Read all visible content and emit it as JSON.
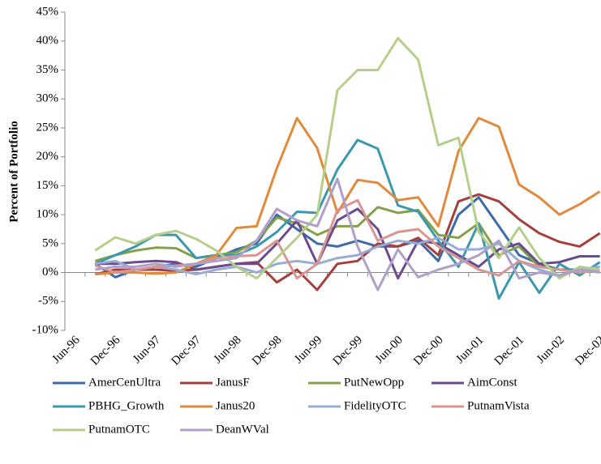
{
  "chart_data": {
    "type": "line",
    "y_label": "Percent of Portfolio",
    "categories": [
      "Jun-96",
      null,
      "Dec-96",
      null,
      "Jun-97",
      null,
      "Dec-97",
      null,
      "Jun-98",
      null,
      "Dec-98",
      null,
      "Jun-99",
      null,
      "Dec-99",
      null,
      "Jun-00",
      null,
      "Dec-00",
      null,
      "Jun-01",
      null,
      "Dec-01",
      null,
      "Jun-02",
      null,
      "Dec-02"
    ],
    "ylim": [
      -10,
      45
    ],
    "yticks": [
      {
        "value": -10,
        "label": "-10%"
      },
      {
        "value": -5,
        "label": "-5%"
      },
      {
        "value": 0,
        "label": "0%"
      },
      {
        "value": 5,
        "label": "5%"
      },
      {
        "value": 10,
        "label": "10%"
      },
      {
        "value": 15,
        "label": "15%"
      },
      {
        "value": 20,
        "label": "20%"
      },
      {
        "value": 25,
        "label": "25%"
      },
      {
        "value": 30,
        "label": "30%"
      },
      {
        "value": 35,
        "label": "35%"
      },
      {
        "value": 40,
        "label": "40%"
      },
      {
        "value": 45,
        "label": "45%"
      }
    ],
    "grid": false,
    "series": [
      {
        "name": "AmerCenUltra",
        "color": "#3d6aa8",
        "values": [
          null,
          1.5,
          -0.8,
          0.5,
          1,
          1.5,
          1,
          2.5,
          4,
          5,
          10,
          7.5,
          5,
          4.5,
          5.5,
          4.5,
          4.5,
          5.5,
          2,
          10,
          13,
          8,
          3,
          1.5,
          0.5,
          0.5,
          0.5
        ]
      },
      {
        "name": "JanusF",
        "color": "#a53f3c",
        "values": [
          null,
          -0.3,
          0.5,
          0.5,
          0.5,
          0.3,
          0.5,
          1,
          1.5,
          1.8,
          -1.7,
          0.5,
          -3,
          1.5,
          2,
          5,
          4.5,
          6,
          3,
          12.3,
          13.5,
          12.3,
          9.2,
          6.8,
          5.3,
          4.5,
          6.8
        ]
      },
      {
        "name": "PutNewOpp",
        "color": "#84a04a",
        "values": [
          null,
          2,
          3,
          3.8,
          4.3,
          4.2,
          2.5,
          3,
          3.5,
          5.5,
          9.5,
          8.5,
          6.5,
          8,
          8,
          11.3,
          10.3,
          10.8,
          6.5,
          6,
          8.5,
          3,
          4.5,
          1,
          0.5,
          0,
          0.5
        ]
      },
      {
        "name": "AimConst",
        "color": "#6a4c8e",
        "values": [
          null,
          1.5,
          1.5,
          1.8,
          2,
          1.8,
          0.5,
          1,
          1.5,
          1.5,
          5,
          9,
          1.5,
          9,
          11,
          7.5,
          -1,
          5.5,
          5,
          3,
          1,
          4,
          5,
          1.5,
          1.8,
          2.8,
          2.8
        ]
      },
      {
        "name": "PBHG_Growth",
        "color": "#3c98ae",
        "values": [
          null,
          1.5,
          3,
          4.5,
          6.5,
          6.5,
          2.5,
          3,
          3,
          4.5,
          7,
          10.5,
          10.3,
          17.8,
          22.9,
          21.4,
          11.6,
          10.5,
          5.5,
          1,
          8.5,
          -4.5,
          1.8,
          -3.5,
          1.5,
          -0.5,
          1.8
        ]
      },
      {
        "name": "Janus20",
        "color": "#e08a3c",
        "values": [
          null,
          -0.3,
          0,
          0,
          -0.2,
          0,
          1.5,
          3,
          7.7,
          8,
          18,
          26.7,
          21.5,
          10.3,
          16,
          15.5,
          12.5,
          13,
          8,
          21,
          26.7,
          25.2,
          15.2,
          13,
          10,
          11.8,
          14
        ]
      },
      {
        "name": "FidelityOTC",
        "color": "#97add3",
        "values": [
          null,
          1.5,
          2,
          0.5,
          1,
          0.5,
          -0.3,
          0.5,
          1,
          0,
          1.5,
          2,
          1.5,
          2.5,
          3,
          4.5,
          5.5,
          5,
          6,
          4,
          4,
          5,
          2,
          0.5,
          -0.5,
          0.5,
          1
        ]
      },
      {
        "name": "PutnamVista",
        "color": "#d99592",
        "values": [
          null,
          1.2,
          0,
          0.5,
          1,
          1.2,
          1.5,
          2.5,
          2.8,
          3,
          5.5,
          -1,
          1.5,
          10.8,
          12.5,
          5.5,
          7,
          7.5,
          4.5,
          2.5,
          0.5,
          -0.5,
          2,
          1,
          0.5,
          0,
          0.5
        ]
      },
      {
        "name": "PutnamOTC",
        "color": "#b5cf8a",
        "values": [
          null,
          3.8,
          6.1,
          5,
          6.5,
          7.2,
          5.8,
          3.8,
          1,
          -1,
          2.5,
          6,
          10,
          31.5,
          35,
          35,
          40.5,
          36.8,
          22,
          23.3,
          7,
          2.5,
          7.8,
          2.5,
          -1,
          1,
          0.5
        ]
      },
      {
        "name": "DeanWVal",
        "color": "#aea0c8",
        "values": [
          null,
          0.5,
          1,
          1,
          1.5,
          1,
          1.5,
          2,
          2.5,
          5.5,
          11,
          9,
          8,
          16.2,
          4.5,
          -3,
          4,
          -0.8,
          0.5,
          1.5,
          3,
          5.5,
          -1,
          0,
          -0.5,
          0.5,
          0
        ]
      }
    ]
  }
}
